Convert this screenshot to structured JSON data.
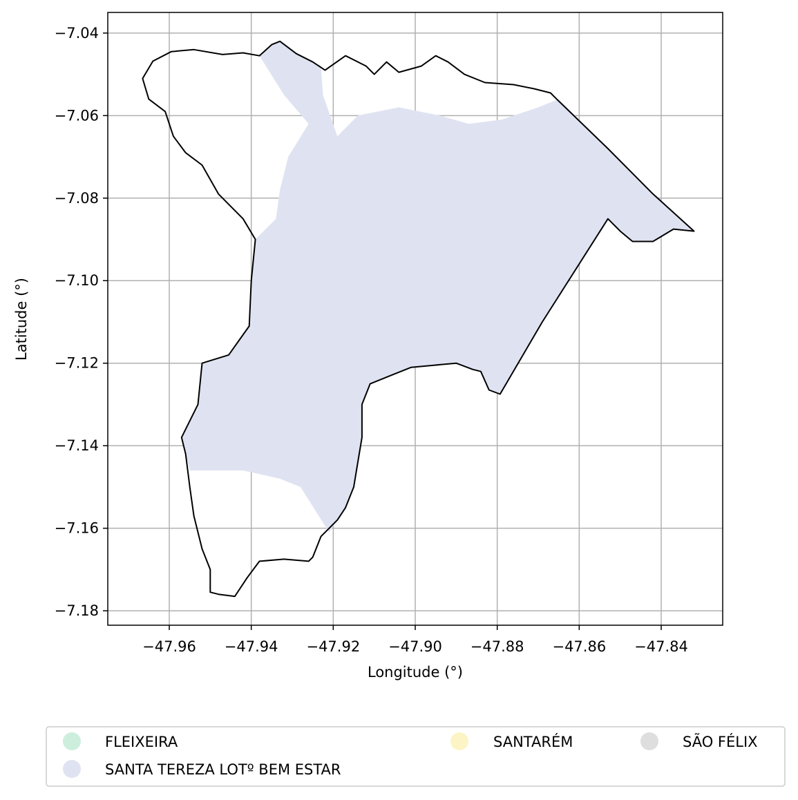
{
  "chart_data": {
    "type": "map",
    "title": "",
    "xlabel": "Longitude (°)",
    "ylabel": "Latitude (°)",
    "xlim": [
      -47.975,
      -47.825
    ],
    "ylim": [
      -7.1835,
      -7.035
    ],
    "grid": true,
    "x_ticks": [
      -47.96,
      -47.94,
      -47.92,
      -47.9,
      -47.88,
      -47.86,
      -47.84
    ],
    "x_tick_labels": [
      "−47.96",
      "−47.94",
      "−47.92",
      "−47.90",
      "−47.88",
      "−47.86",
      "−47.84"
    ],
    "y_ticks": [
      -7.04,
      -7.06,
      -7.08,
      -7.1,
      -7.12,
      -7.14,
      -7.16,
      -7.18
    ],
    "y_tick_labels": [
      "−7.04",
      "−7.06",
      "−7.08",
      "−7.10",
      "−7.12",
      "−7.14",
      "−7.16",
      "−7.18"
    ],
    "legend": {
      "placement": "bottom",
      "columns": 3,
      "entries": [
        {
          "label": "FLEIXEIRA",
          "color": "#cdeedd"
        },
        {
          "label": "SANTA TEREZA LOTº BEM ESTAR",
          "color": "#dfe3f1"
        },
        {
          "label": "SANTARÉM",
          "color": "#fdf4c6"
        },
        {
          "label": "SÃO FÉLIX",
          "color": "#dedede"
        }
      ]
    },
    "colors": {
      "boundary": "#000000",
      "fill": "#dfe3f1",
      "grid": "#b0b0b0"
    },
    "boundary_outline": [
      [
        -47.9665,
        -7.051
      ],
      [
        -47.964,
        -7.0468
      ],
      [
        -47.9595,
        -7.0445
      ],
      [
        -47.954,
        -7.044
      ],
      [
        -47.947,
        -7.0452
      ],
      [
        -47.942,
        -7.0448
      ],
      [
        -47.938,
        -7.0455
      ],
      [
        -47.935,
        -7.0428
      ],
      [
        -47.933,
        -7.042
      ],
      [
        -47.929,
        -7.045
      ],
      [
        -47.925,
        -7.047
      ],
      [
        -47.922,
        -7.049
      ],
      [
        -47.917,
        -7.0455
      ],
      [
        -47.912,
        -7.048
      ],
      [
        -47.91,
        -7.05
      ],
      [
        -47.907,
        -7.047
      ],
      [
        -47.904,
        -7.0495
      ],
      [
        -47.8985,
        -7.048
      ],
      [
        -47.895,
        -7.0455
      ],
      [
        -47.892,
        -7.047
      ],
      [
        -47.888,
        -7.05
      ],
      [
        -47.883,
        -7.052
      ],
      [
        -47.876,
        -7.0525
      ],
      [
        -47.871,
        -7.0535
      ],
      [
        -47.867,
        -7.0545
      ],
      [
        -47.8655,
        -7.056
      ],
      [
        -47.853,
        -7.068
      ],
      [
        -47.842,
        -7.079
      ],
      [
        -47.832,
        -7.088
      ],
      [
        -47.837,
        -7.0875
      ],
      [
        -47.842,
        -7.0905
      ],
      [
        -47.847,
        -7.0905
      ],
      [
        -47.85,
        -7.088
      ],
      [
        -47.853,
        -7.085
      ],
      [
        -47.869,
        -7.11
      ],
      [
        -47.8793,
        -7.1275
      ],
      [
        -47.882,
        -7.1265
      ],
      [
        -47.884,
        -7.122
      ],
      [
        -47.886,
        -7.1215
      ],
      [
        -47.89,
        -7.12
      ],
      [
        -47.8955,
        -7.1205
      ],
      [
        -47.901,
        -7.121
      ],
      [
        -47.906,
        -7.123
      ],
      [
        -47.911,
        -7.125
      ],
      [
        -47.913,
        -7.13
      ],
      [
        -47.913,
        -7.138
      ],
      [
        -47.914,
        -7.144
      ],
      [
        -47.915,
        -7.15
      ],
      [
        -47.917,
        -7.155
      ],
      [
        -47.919,
        -7.158
      ],
      [
        -47.923,
        -7.162
      ],
      [
        -47.925,
        -7.167
      ],
      [
        -47.926,
        -7.168
      ],
      [
        -47.932,
        -7.1675
      ],
      [
        -47.938,
        -7.168
      ],
      [
        -47.941,
        -7.172
      ],
      [
        -47.944,
        -7.1765
      ],
      [
        -47.948,
        -7.176
      ],
      [
        -47.95,
        -7.1755
      ],
      [
        -47.95,
        -7.17
      ],
      [
        -47.952,
        -7.165
      ],
      [
        -47.954,
        -7.157
      ],
      [
        -47.955,
        -7.15
      ],
      [
        -47.956,
        -7.142
      ],
      [
        -47.957,
        -7.138
      ],
      [
        -47.953,
        -7.13
      ],
      [
        -47.952,
        -7.12
      ],
      [
        -47.9455,
        -7.118
      ],
      [
        -47.9405,
        -7.111
      ],
      [
        -47.94,
        -7.1
      ],
      [
        -47.939,
        -7.09
      ],
      [
        -47.942,
        -7.085
      ],
      [
        -47.948,
        -7.079
      ],
      [
        -47.952,
        -7.072
      ],
      [
        -47.956,
        -7.069
      ],
      [
        -47.959,
        -7.065
      ],
      [
        -47.961,
        -7.059
      ],
      [
        -47.965,
        -7.056
      ],
      [
        -47.9665,
        -7.051
      ]
    ],
    "filled_area": [
      [
        -47.938,
        -7.0455
      ],
      [
        -47.935,
        -7.0428
      ],
      [
        -47.933,
        -7.042
      ],
      [
        -47.929,
        -7.045
      ],
      [
        -47.925,
        -7.047
      ],
      [
        -47.923,
        -7.048
      ],
      [
        -47.9225,
        -7.055
      ],
      [
        -47.919,
        -7.065
      ],
      [
        -47.914,
        -7.06
      ],
      [
        -47.904,
        -7.058
      ],
      [
        -47.894,
        -7.06
      ],
      [
        -47.887,
        -7.062
      ],
      [
        -47.879,
        -7.061
      ],
      [
        -47.87,
        -7.058
      ],
      [
        -47.865,
        -7.056
      ],
      [
        -47.853,
        -7.068
      ],
      [
        -47.842,
        -7.079
      ],
      [
        -47.832,
        -7.088
      ],
      [
        -47.837,
        -7.0875
      ],
      [
        -47.842,
        -7.0905
      ],
      [
        -47.847,
        -7.0905
      ],
      [
        -47.85,
        -7.088
      ],
      [
        -47.853,
        -7.085
      ],
      [
        -47.869,
        -7.11
      ],
      [
        -47.8793,
        -7.1275
      ],
      [
        -47.882,
        -7.1265
      ],
      [
        -47.884,
        -7.122
      ],
      [
        -47.886,
        -7.1215
      ],
      [
        -47.89,
        -7.12
      ],
      [
        -47.8955,
        -7.1205
      ],
      [
        -47.901,
        -7.121
      ],
      [
        -47.906,
        -7.123
      ],
      [
        -47.911,
        -7.125
      ],
      [
        -47.913,
        -7.13
      ],
      [
        -47.913,
        -7.138
      ],
      [
        -47.914,
        -7.144
      ],
      [
        -47.915,
        -7.15
      ],
      [
        -47.917,
        -7.155
      ],
      [
        -47.919,
        -7.158
      ],
      [
        -47.921,
        -7.161
      ],
      [
        -47.928,
        -7.15
      ],
      [
        -47.933,
        -7.148
      ],
      [
        -47.942,
        -7.146
      ],
      [
        -47.948,
        -7.146
      ],
      [
        -47.955,
        -7.146
      ],
      [
        -47.956,
        -7.142
      ],
      [
        -47.957,
        -7.138
      ],
      [
        -47.953,
        -7.13
      ],
      [
        -47.952,
        -7.12
      ],
      [
        -47.9455,
        -7.118
      ],
      [
        -47.9405,
        -7.111
      ],
      [
        -47.94,
        -7.1
      ],
      [
        -47.939,
        -7.09
      ],
      [
        -47.934,
        -7.085
      ],
      [
        -47.933,
        -7.078
      ],
      [
        -47.931,
        -7.07
      ],
      [
        -47.926,
        -7.062
      ],
      [
        -47.932,
        -7.055
      ],
      [
        -47.938,
        -7.0455
      ]
    ]
  }
}
